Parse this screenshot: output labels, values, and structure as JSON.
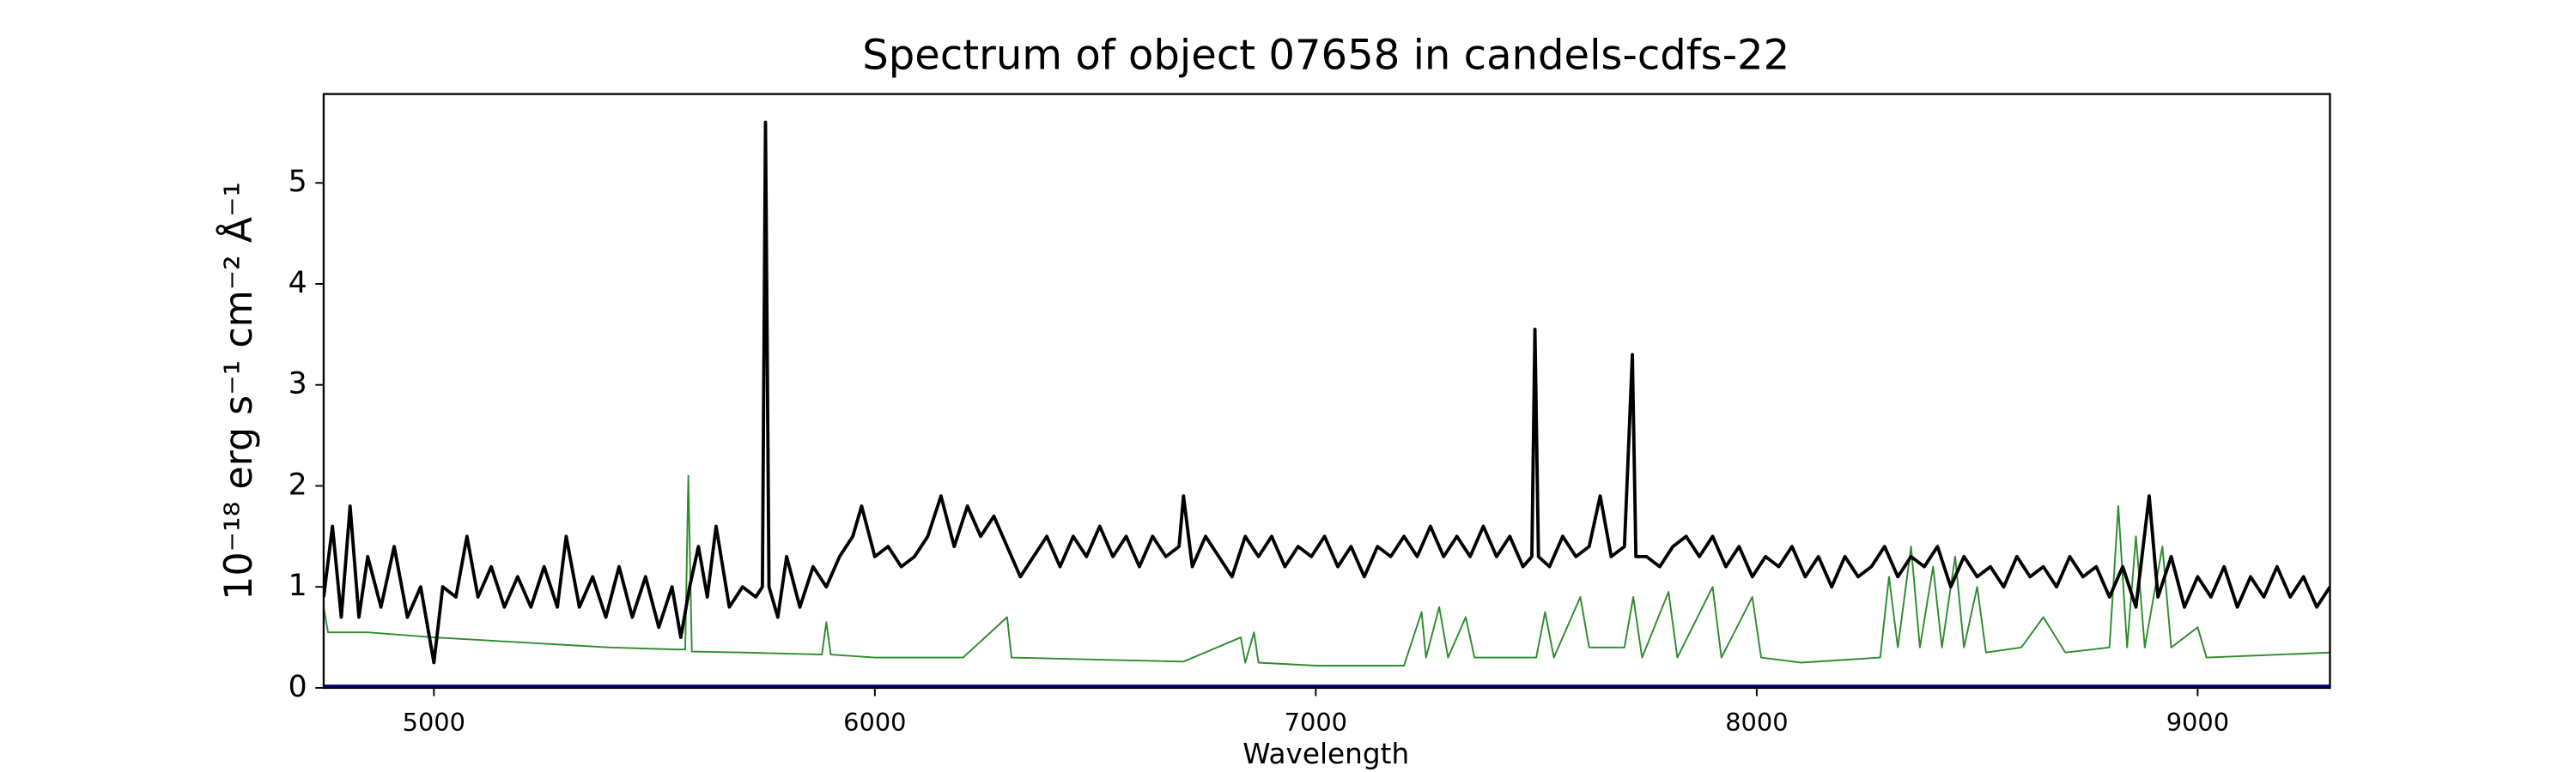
{
  "chart_data": {
    "type": "line",
    "title": "Spectrum of object 07658 in candels-cdfs-22",
    "xlabel": "Wavelength",
    "ylabel": "10⁻¹⁸ erg s⁻¹ cm⁻² Å⁻¹",
    "xlim": [
      4750,
      9300
    ],
    "ylim": [
      0,
      5.88
    ],
    "xticks": [
      5000,
      6000,
      7000,
      8000,
      9000
    ],
    "yticks": [
      0,
      1,
      2,
      3,
      4,
      5
    ],
    "series": [
      {
        "color": "#2e8b2e",
        "width": 1,
        "x": [
          4750,
          4760,
          4850,
          5000,
          5200,
          5400,
          5550,
          5570,
          5577,
          5585,
          5700,
          5880,
          5890,
          5900,
          6000,
          6200,
          6300,
          6310,
          6500,
          6700,
          6830,
          6840,
          6860,
          6870,
          7000,
          7200,
          7240,
          7250,
          7280,
          7300,
          7340,
          7360,
          7500,
          7520,
          7540,
          7600,
          7620,
          7700,
          7720,
          7740,
          7800,
          7820,
          7900,
          7920,
          7990,
          8010,
          8100,
          8280,
          8300,
          8320,
          8350,
          8370,
          8400,
          8420,
          8450,
          8470,
          8500,
          8520,
          8600,
          8650,
          8700,
          8800,
          8820,
          8840,
          8860,
          8880,
          8920,
          8940,
          9000,
          9020,
          9300
        ],
        "values": [
          0.8,
          0.55,
          0.55,
          0.5,
          0.45,
          0.4,
          0.38,
          0.38,
          2.1,
          0.36,
          0.35,
          0.33,
          0.65,
          0.33,
          0.3,
          0.3,
          0.7,
          0.3,
          0.28,
          0.26,
          0.5,
          0.25,
          0.55,
          0.25,
          0.22,
          0.22,
          0.75,
          0.3,
          0.8,
          0.3,
          0.7,
          0.3,
          0.3,
          0.75,
          0.3,
          0.9,
          0.4,
          0.4,
          0.9,
          0.3,
          0.95,
          0.3,
          1.0,
          0.3,
          0.9,
          0.3,
          0.25,
          0.3,
          1.1,
          0.4,
          1.4,
          0.4,
          1.2,
          0.4,
          1.3,
          0.4,
          1.0,
          0.35,
          0.4,
          0.7,
          0.35,
          0.4,
          1.8,
          0.4,
          1.5,
          0.4,
          1.4,
          0.4,
          0.6,
          0.3,
          0.35
        ]
      },
      {
        "color": "#000000",
        "width": 2,
        "x": [
          4750,
          4770,
          4790,
          4810,
          4830,
          4850,
          4880,
          4910,
          4940,
          4970,
          5000,
          5020,
          5050,
          5075,
          5100,
          5130,
          5160,
          5190,
          5220,
          5250,
          5280,
          5300,
          5330,
          5360,
          5390,
          5420,
          5450,
          5480,
          5510,
          5540,
          5560,
          5580,
          5600,
          5620,
          5640,
          5670,
          5700,
          5730,
          5745,
          5752,
          5760,
          5780,
          5800,
          5830,
          5860,
          5890,
          5920,
          5950,
          5970,
          6000,
          6030,
          6060,
          6090,
          6120,
          6150,
          6180,
          6210,
          6240,
          6270,
          6300,
          6330,
          6360,
          6390,
          6420,
          6450,
          6480,
          6510,
          6540,
          6570,
          6600,
          6630,
          6660,
          6690,
          6700,
          6720,
          6750,
          6780,
          6810,
          6840,
          6870,
          6900,
          6930,
          6960,
          6990,
          7020,
          7050,
          7080,
          7110,
          7140,
          7170,
          7200,
          7230,
          7260,
          7290,
          7320,
          7350,
          7380,
          7410,
          7440,
          7470,
          7490,
          7497,
          7505,
          7530,
          7560,
          7590,
          7620,
          7645,
          7670,
          7700,
          7718,
          7726,
          7750,
          7780,
          7810,
          7840,
          7870,
          7900,
          7930,
          7960,
          7990,
          8020,
          8050,
          8080,
          8110,
          8140,
          8170,
          8200,
          8230,
          8260,
          8290,
          8320,
          8350,
          8380,
          8410,
          8440,
          8470,
          8500,
          8530,
          8560,
          8590,
          8620,
          8650,
          8680,
          8710,
          8740,
          8770,
          8800,
          8830,
          8860,
          8890,
          8910,
          8940,
          8970,
          9000,
          9030,
          9060,
          9090,
          9120,
          9150,
          9180,
          9210,
          9240,
          9270,
          9300
        ],
        "values": [
          0.9,
          1.6,
          0.7,
          1.8,
          0.7,
          1.3,
          0.8,
          1.4,
          0.7,
          1.0,
          0.25,
          1.0,
          0.9,
          1.5,
          0.9,
          1.2,
          0.8,
          1.1,
          0.8,
          1.2,
          0.8,
          1.5,
          0.8,
          1.1,
          0.7,
          1.2,
          0.7,
          1.1,
          0.6,
          1.0,
          0.5,
          1.0,
          1.4,
          0.9,
          1.6,
          0.8,
          1.0,
          0.9,
          1.0,
          5.6,
          1.0,
          0.7,
          1.3,
          0.8,
          1.2,
          1.0,
          1.3,
          1.5,
          1.8,
          1.3,
          1.4,
          1.2,
          1.3,
          1.5,
          1.9,
          1.4,
          1.8,
          1.5,
          1.7,
          1.4,
          1.1,
          1.3,
          1.5,
          1.2,
          1.5,
          1.3,
          1.6,
          1.3,
          1.5,
          1.2,
          1.5,
          1.3,
          1.4,
          1.9,
          1.2,
          1.5,
          1.3,
          1.1,
          1.5,
          1.3,
          1.5,
          1.2,
          1.4,
          1.3,
          1.5,
          1.2,
          1.4,
          1.1,
          1.4,
          1.3,
          1.5,
          1.3,
          1.6,
          1.3,
          1.5,
          1.3,
          1.6,
          1.3,
          1.5,
          1.2,
          1.3,
          3.55,
          1.3,
          1.2,
          1.5,
          1.3,
          1.4,
          1.9,
          1.3,
          1.4,
          3.3,
          1.3,
          1.3,
          1.2,
          1.4,
          1.5,
          1.3,
          1.5,
          1.2,
          1.4,
          1.1,
          1.3,
          1.2,
          1.4,
          1.1,
          1.3,
          1.0,
          1.3,
          1.1,
          1.2,
          1.4,
          1.1,
          1.3,
          1.2,
          1.4,
          1.0,
          1.3,
          1.1,
          1.2,
          1.0,
          1.3,
          1.1,
          1.2,
          1.0,
          1.3,
          1.1,
          1.2,
          0.9,
          1.2,
          0.8,
          1.9,
          0.9,
          1.3,
          0.8,
          1.1,
          0.9,
          1.2,
          0.8,
          1.1,
          0.9,
          1.2,
          0.9,
          1.1,
          0.8,
          1.0
        ]
      },
      {
        "color": "#00008b",
        "width": 4,
        "x": [
          4750,
          9300
        ],
        "values": [
          0,
          0
        ]
      }
    ]
  }
}
